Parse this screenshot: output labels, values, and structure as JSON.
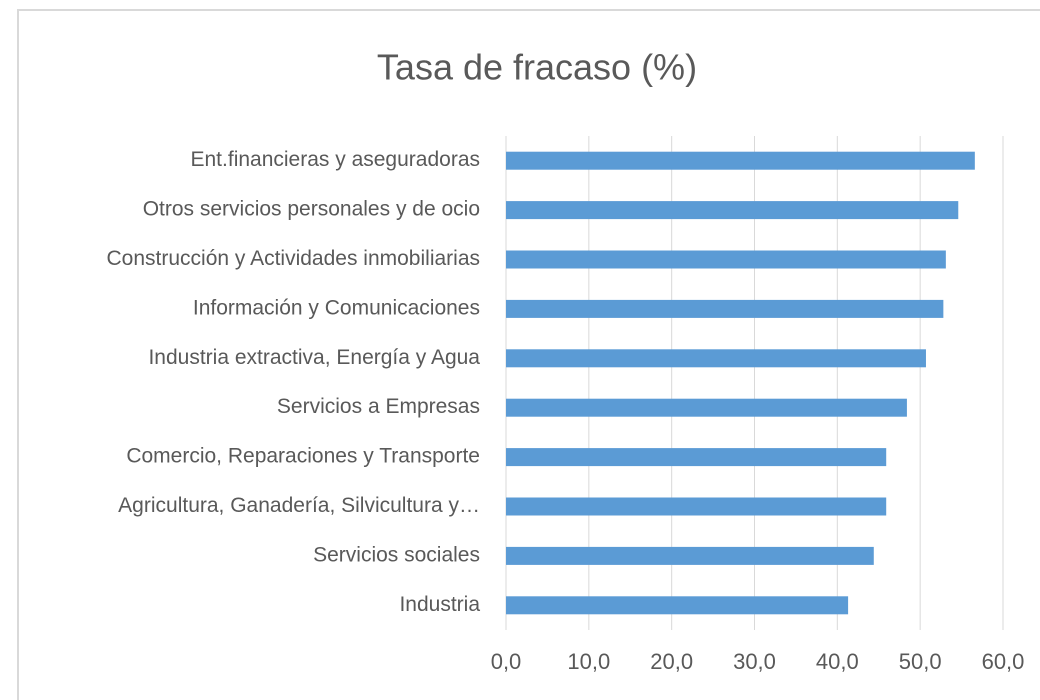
{
  "chart_data": {
    "type": "hbar",
    "title": "Tasa de fracaso (%)",
    "categories": [
      "Ent.financieras y aseguradoras",
      "Otros servicios personales y de ocio",
      "Construcción y Actividades inmobiliarias",
      "Información y Comunicaciones",
      "Industria extractiva, Energía y Agua",
      "Servicios a Empresas",
      "Comercio, Reparaciones y Transporte",
      "Agricultura, Ganadería, Silvicultura y…",
      "Servicios sociales",
      "Industria"
    ],
    "values": [
      56.6,
      54.6,
      53.1,
      52.8,
      50.7,
      48.4,
      45.9,
      45.9,
      44.4,
      41.3
    ],
    "color": "#5b9bd5",
    "xlim": [
      0,
      60
    ],
    "xticks": [
      {
        "value": 0,
        "label": "0,0"
      },
      {
        "value": 10,
        "label": "10,0"
      },
      {
        "value": 20,
        "label": "20,0"
      },
      {
        "value": 30,
        "label": "30,0"
      },
      {
        "value": 40,
        "label": "40,0"
      },
      {
        "value": 50,
        "label": "50,0"
      },
      {
        "value": 60,
        "label": "60,0"
      }
    ],
    "grid": true
  }
}
